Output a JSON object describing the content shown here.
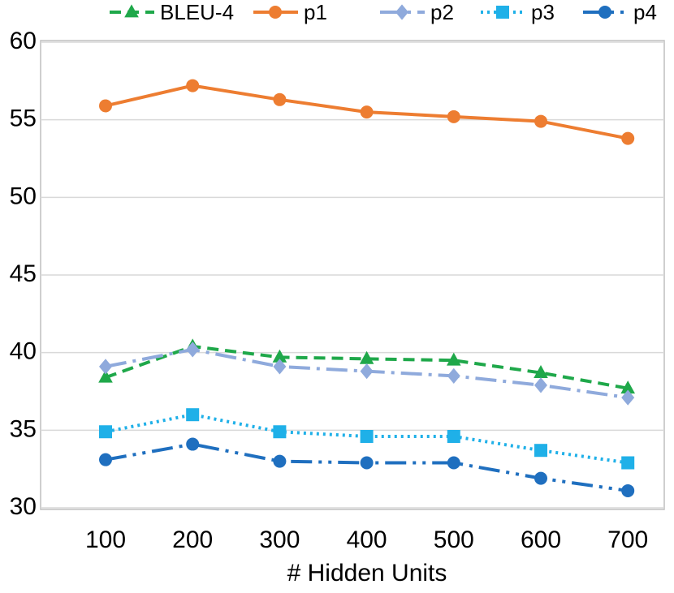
{
  "chart_data": {
    "type": "line",
    "xlabel": "# Hidden Units",
    "categories": [
      "100",
      "200",
      "300",
      "400",
      "500",
      "600",
      "700"
    ],
    "series": [
      {
        "name": "BLEU-4",
        "color": "#1fa84a",
        "marker": "triangle",
        "dash": "dash",
        "values": [
          38.4,
          40.4,
          39.7,
          39.6,
          39.5,
          38.7,
          37.7
        ]
      },
      {
        "name": "p1",
        "color": "#ed7d31",
        "marker": "circle",
        "dash": "solid",
        "values": [
          55.9,
          57.2,
          56.3,
          55.5,
          55.2,
          54.9,
          53.8
        ]
      },
      {
        "name": "p2",
        "color": "#8faadc",
        "marker": "diamond",
        "dash": "longdashdot",
        "values": [
          39.1,
          40.2,
          39.1,
          38.8,
          38.5,
          37.9,
          37.1
        ]
      },
      {
        "name": "p3",
        "color": "#1fb0e8",
        "marker": "square",
        "dash": "dot",
        "values": [
          34.9,
          36.0,
          34.9,
          34.6,
          34.6,
          33.7,
          32.9
        ]
      },
      {
        "name": "p4",
        "color": "#1f6fbf",
        "marker": "circle",
        "dash": "longdashdotdot",
        "values": [
          33.1,
          34.1,
          33.0,
          32.9,
          32.9,
          31.9,
          31.1
        ]
      }
    ],
    "ylim": [
      30,
      60
    ],
    "yticks": [
      30,
      35,
      40,
      45,
      50,
      55,
      60
    ],
    "grid": true,
    "legend": "top"
  }
}
